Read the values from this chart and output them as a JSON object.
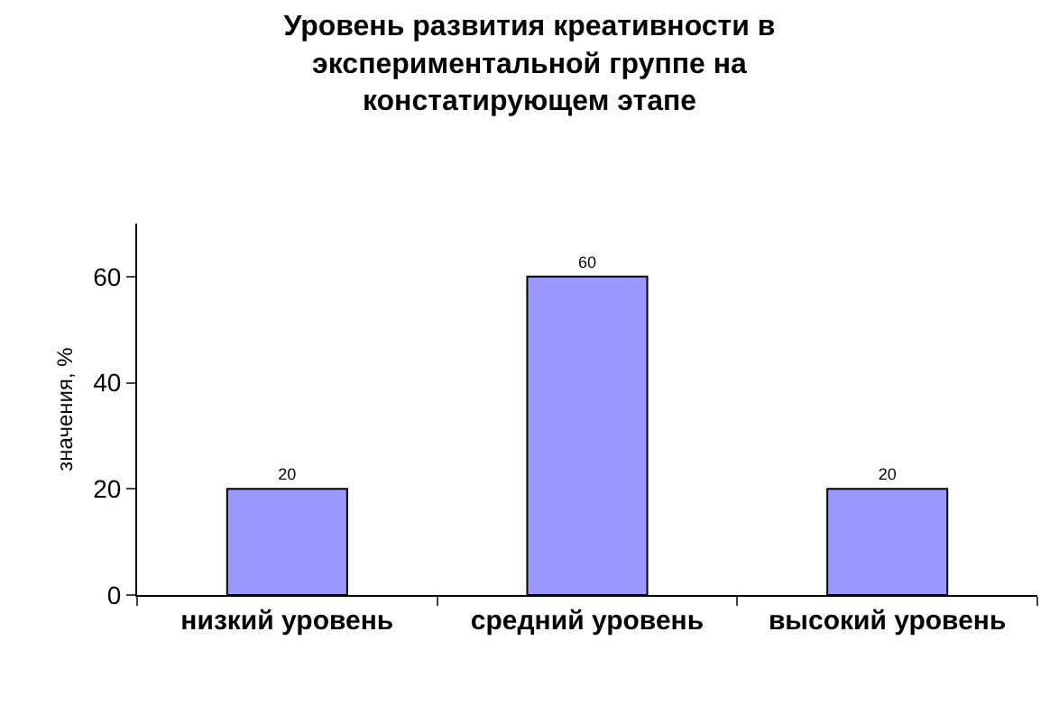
{
  "chart_data": {
    "type": "bar",
    "title": "Уровень развития креативности в\nэкспериментальной группе на\nконстатирующем этапе",
    "categories": [
      "низкий уровень",
      "средний уровень",
      "высокий уровень"
    ],
    "values": [
      20,
      60,
      20
    ],
    "color": "#9999ff",
    "ylabel": "значения, %",
    "ylim": [
      0,
      70
    ],
    "yticks": [
      0,
      20,
      40,
      60
    ],
    "data_labels": true,
    "legend": false
  }
}
